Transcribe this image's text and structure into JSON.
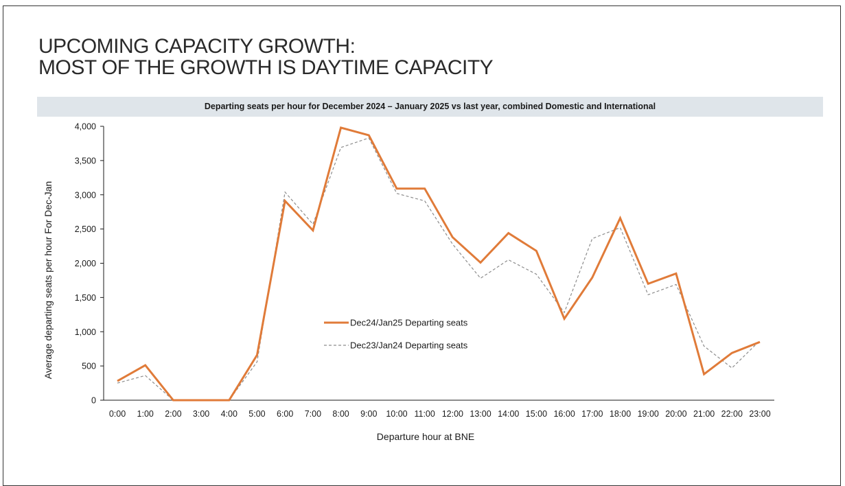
{
  "slide": {
    "title_line1": "UPCOMING CAPACITY GROWTH:",
    "title_line2": "MOST OF THE GROWTH IS DAYTIME CAPACITY"
  },
  "colors": {
    "current_series": "#e07b39",
    "previous_series": "#8c8c8c",
    "banner_bg": "#dfe5ea"
  },
  "chart_data": {
    "type": "line",
    "title": "Departing seats per hour for December 2024 – January 2025 vs last year, combined Domestic and International",
    "xlabel": "Departure hour at BNE",
    "ylabel": "Average departing seats per hour For Dec-Jan",
    "ylim": [
      0,
      4000
    ],
    "yticks": [
      0,
      500,
      1000,
      1500,
      2000,
      2500,
      3000,
      3500,
      4000
    ],
    "ytick_labels": [
      "0",
      "500",
      "1,000",
      "1,500",
      "2,000",
      "2,500",
      "3,000",
      "3,500",
      "4,000"
    ],
    "categories": [
      "0:00",
      "1:00",
      "2:00",
      "3:00",
      "4:00",
      "5:00",
      "6:00",
      "7:00",
      "8:00",
      "9:00",
      "10:00",
      "11:00",
      "12:00",
      "13:00",
      "14:00",
      "15:00",
      "16:00",
      "17:00",
      "18:00",
      "19:00",
      "20:00",
      "21:00",
      "22:00",
      "23:00"
    ],
    "grid": false,
    "legend_position": "center",
    "series": [
      {
        "name": "Dec24/Jan25 Departing seats",
        "style": "solid",
        "values": [
          280,
          510,
          0,
          0,
          0,
          660,
          2910,
          2480,
          3980,
          3870,
          3090,
          3090,
          2380,
          2010,
          2440,
          2180,
          1190,
          1790,
          2660,
          1700,
          1850,
          380,
          690,
          850
        ]
      },
      {
        "name": "Dec23/Jan24 Departing seats",
        "style": "dashed",
        "values": [
          250,
          360,
          0,
          0,
          0,
          560,
          3040,
          2570,
          3690,
          3830,
          3020,
          2910,
          2280,
          1780,
          2050,
          1840,
          1280,
          2360,
          2520,
          1540,
          1690,
          790,
          470,
          870
        ]
      }
    ]
  }
}
